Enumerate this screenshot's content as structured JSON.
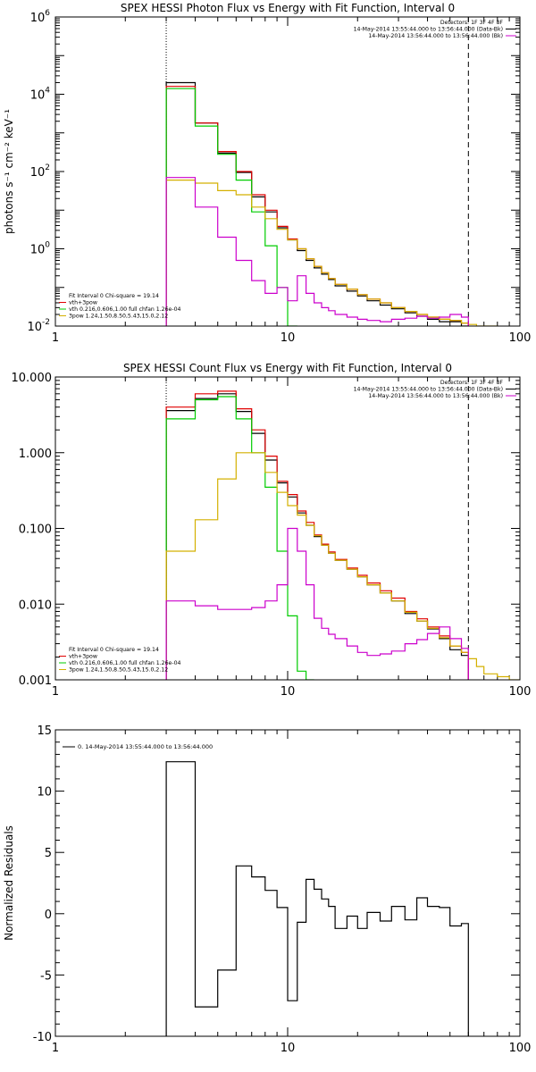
{
  "chart_data": [
    {
      "type": "line",
      "title": "SPEX HESSI Photon Flux vs Energy with Fit Function, Interval 0",
      "ylabel": "photons s⁻¹ cm⁻² keV⁻¹",
      "xscale": "log",
      "yscale": "log",
      "xlim": [
        1,
        100
      ],
      "ylim": [
        0.01,
        1000000
      ],
      "x_ticks": [
        {
          "value": 1,
          "label": "1"
        },
        {
          "value": 10,
          "label": "10"
        },
        {
          "value": 100,
          "label": "100"
        }
      ],
      "y_ticks": [
        {
          "value": 0.01,
          "base": "10",
          "exp": "-2"
        },
        {
          "value": 1,
          "base": "10",
          "exp": "0"
        },
        {
          "value": 100,
          "base": "10",
          "exp": "2"
        },
        {
          "value": 10000,
          "base": "10",
          "exp": "4"
        },
        {
          "value": 1000000,
          "base": "10",
          "exp": "6"
        }
      ],
      "vlines": [
        {
          "x": 3,
          "style": "dotted"
        },
        {
          "x": 60,
          "style": "dashed"
        }
      ],
      "legend_topright": [
        {
          "text": "Detectors: 1F 3F 4F 8F",
          "color": "#000000",
          "line": false
        },
        {
          "text": "14-May-2014 13:55:44.000 to 13:56:44.000 (Data-Bk)",
          "color": "#000000",
          "line": true
        },
        {
          "text": "14-May-2014 13:56:44.000 to 13:56:44.000 (Bk)",
          "color": "#cc00cc",
          "line": true
        }
      ],
      "legend_bottomleft": [
        {
          "text": "Fit Interval 0   Chi-square = 19.14",
          "color": "#000000",
          "line": false
        },
        {
          "text": "vth+3pow",
          "color": "#e00000",
          "line": true
        },
        {
          "text": "vth 0.216,0.606,1.00  full chfan 1.26e-04",
          "color": "#00cc00",
          "line": true
        },
        {
          "text": "3pow 1.24,1.50,8.50,5.43,15.0,2.12",
          "color": "#d4b000",
          "line": true
        }
      ],
      "edges": [
        3,
        4,
        5,
        6,
        7,
        8,
        9,
        10,
        11,
        12,
        13,
        14,
        15,
        16,
        18,
        20,
        22,
        25,
        28,
        32,
        36,
        40,
        45,
        50,
        56,
        60,
        65,
        70,
        80
      ],
      "series": [
        {
          "name": "Data-Bk",
          "color": "#000000",
          "start_edge": 0,
          "values": [
            20000,
            1800,
            300,
            95,
            22,
            9,
            3.5,
            1.7,
            0.9,
            0.5,
            0.32,
            0.22,
            0.16,
            0.11,
            0.08,
            0.06,
            0.045,
            0.035,
            0.028,
            0.022,
            0.018,
            0.015,
            0.013,
            0.013,
            0.01
          ]
        },
        {
          "name": "vth+3pow",
          "color": "#e00000",
          "start_edge": 0,
          "values": [
            16000,
            1800,
            330,
            100,
            25,
            10,
            3.8,
            1.8,
            1.0,
            0.55,
            0.35,
            0.24,
            0.17,
            0.12,
            0.09,
            0.065,
            0.05,
            0.04,
            0.03,
            0.024,
            0.02,
            0.017,
            0.015,
            0.014,
            0.012
          ]
        },
        {
          "name": "vth",
          "color": "#00cc00",
          "start_edge": 0,
          "values": [
            14000,
            1500,
            280,
            60,
            9,
            1.2,
            0.1,
            0.01
          ]
        },
        {
          "name": "3pow",
          "color": "#d4b000",
          "start_edge": 0,
          "values": [
            60,
            50,
            32,
            25,
            12,
            6,
            3.2,
            1.7,
            1.0,
            0.55,
            0.35,
            0.24,
            0.17,
            0.12,
            0.09,
            0.065,
            0.05,
            0.04,
            0.03,
            0.024,
            0.02,
            0.017,
            0.015,
            0.014,
            0.012,
            0.011,
            0.01,
            0.009
          ]
        },
        {
          "name": "Bk",
          "color": "#cc00cc",
          "start_edge": 0,
          "values": [
            70,
            12,
            2,
            0.5,
            0.15,
            0.07,
            0.1,
            0.045,
            0.2,
            0.07,
            0.04,
            0.03,
            0.025,
            0.02,
            0.017,
            0.015,
            0.014,
            0.013,
            0.015,
            0.016,
            0.018,
            0.016,
            0.017,
            0.02,
            0.017
          ]
        }
      ]
    },
    {
      "type": "line",
      "title": "SPEX HESSI Count Flux vs Energy with Fit Function, Interval 0",
      "ylabel": "",
      "xscale": "log",
      "yscale": "log",
      "xlim": [
        1,
        100
      ],
      "ylim": [
        0.001,
        10
      ],
      "x_ticks": [
        {
          "value": 1,
          "label": "1"
        },
        {
          "value": 10,
          "label": "10"
        },
        {
          "value": 100,
          "label": "100"
        }
      ],
      "y_ticks": [
        {
          "value": 0.001,
          "label": "0.001"
        },
        {
          "value": 0.01,
          "label": "0.010"
        },
        {
          "value": 0.1,
          "label": "0.100"
        },
        {
          "value": 1,
          "label": "1.000"
        },
        {
          "value": 10,
          "label": "10.000"
        }
      ],
      "vlines": [
        {
          "x": 3,
          "style": "dotted"
        },
        {
          "x": 60,
          "style": "dashed"
        }
      ],
      "legend_topright": [
        {
          "text": "Detectors: 1F 3F 4F 8F",
          "color": "#000000",
          "line": false
        },
        {
          "text": "14-May-2014 13:55:44.000 to 13:56:44.000 (Data-Bk)",
          "color": "#000000",
          "line": true
        },
        {
          "text": "14-May-2014 13:56:44.000 to 13:56:44.000 (Bk)",
          "color": "#cc00cc",
          "line": true
        }
      ],
      "legend_bottomleft": [
        {
          "text": "Fit Interval 0   Chi-square = 19.14",
          "color": "#000000",
          "line": false
        },
        {
          "text": "vth+3pow",
          "color": "#e00000",
          "line": true
        },
        {
          "text": "vth 0.216,0.606,1.00  full chfan 1.26e-04",
          "color": "#00cc00",
          "line": true
        },
        {
          "text": "3pow 1.24,1.50,8.50,5.43,15.0,2.12",
          "color": "#d4b000",
          "line": true
        }
      ],
      "edges": [
        3,
        4,
        5,
        6,
        7,
        8,
        9,
        10,
        11,
        12,
        13,
        14,
        15,
        16,
        18,
        20,
        22,
        25,
        28,
        32,
        36,
        40,
        45,
        50,
        56,
        60,
        65,
        70,
        80,
        90,
        100
      ],
      "series": [
        {
          "name": "Data-Bk",
          "color": "#000000",
          "start_edge": 0,
          "values": [
            3.6,
            5.2,
            6.0,
            3.5,
            1.8,
            0.8,
            0.4,
            0.26,
            0.16,
            0.11,
            0.078,
            0.06,
            0.047,
            0.038,
            0.029,
            0.023,
            0.018,
            0.014,
            0.011,
            0.0075,
            0.006,
            0.0047,
            0.0035,
            0.0025,
            0.0021
          ]
        },
        {
          "name": "vth+3pow",
          "color": "#e00000",
          "start_edge": 0,
          "values": [
            4.0,
            6.0,
            6.5,
            3.8,
            2.0,
            0.9,
            0.42,
            0.28,
            0.17,
            0.12,
            0.082,
            0.062,
            0.049,
            0.039,
            0.03,
            0.024,
            0.019,
            0.015,
            0.012,
            0.008,
            0.0064,
            0.005,
            0.0038,
            0.0028,
            0.0023
          ]
        },
        {
          "name": "vth",
          "color": "#00cc00",
          "start_edge": 0,
          "values": [
            2.8,
            5.0,
            5.5,
            2.8,
            1.0,
            0.35,
            0.05,
            0.007,
            0.0013,
            0.0009
          ]
        },
        {
          "name": "3pow",
          "color": "#d4b000",
          "start_edge": 0,
          "values": [
            0.05,
            0.13,
            0.45,
            1.0,
            1.0,
            0.55,
            0.3,
            0.2,
            0.15,
            0.11,
            0.08,
            0.06,
            0.047,
            0.038,
            0.029,
            0.023,
            0.018,
            0.014,
            0.011,
            0.0078,
            0.006,
            0.0048,
            0.0036,
            0.0028,
            0.0023,
            0.0019,
            0.0015,
            0.0012,
            0.0011,
            0.001
          ]
        },
        {
          "name": "Bk",
          "color": "#cc00cc",
          "start_edge": 0,
          "values": [
            0.011,
            0.0095,
            0.0085,
            0.0085,
            0.009,
            0.011,
            0.018,
            0.1,
            0.05,
            0.018,
            0.0065,
            0.0048,
            0.004,
            0.0035,
            0.0028,
            0.0023,
            0.0021,
            0.0022,
            0.0024,
            0.003,
            0.0034,
            0.0041,
            0.005,
            0.0035,
            0.0026
          ]
        }
      ]
    },
    {
      "type": "line",
      "title": "",
      "ylabel": "Normalized Residuals",
      "xscale": "log",
      "yscale": "linear",
      "xlim": [
        1,
        100
      ],
      "ylim": [
        -10,
        15
      ],
      "x_ticks": [
        {
          "value": 1,
          "label": "1"
        },
        {
          "value": 10,
          "label": "10"
        },
        {
          "value": 100,
          "label": "100"
        }
      ],
      "y_ticks": [
        {
          "value": -10,
          "label": "-10"
        },
        {
          "value": -5,
          "label": "-5"
        },
        {
          "value": 0,
          "label": "0"
        },
        {
          "value": 5,
          "label": "5"
        },
        {
          "value": 10,
          "label": "10"
        },
        {
          "value": 15,
          "label": "15"
        }
      ],
      "legend_topleft": [
        {
          "text": "0. 14-May-2014 13:55:44.000 to 13:56:44.000",
          "color": "#000000",
          "line": true
        }
      ],
      "edges": [
        3,
        4,
        5,
        6,
        7,
        8,
        9,
        10,
        11,
        12,
        13,
        14,
        15,
        16,
        18,
        20,
        22,
        25,
        28,
        32,
        36,
        40,
        45,
        50,
        56,
        60
      ],
      "series": [
        {
          "name": "0. 14-May-2014 13:55:44.000 to 13:56:44.000",
          "color": "#000000",
          "start_edge": 0,
          "values": [
            12.4,
            -7.6,
            -4.6,
            3.9,
            3.0,
            1.9,
            0.5,
            -7.1,
            -0.7,
            2.8,
            2.0,
            1.2,
            0.6,
            -1.2,
            -0.2,
            -1.2,
            0.1,
            -0.6,
            0.6,
            -0.5,
            1.3,
            0.6,
            0.5,
            -1.0,
            -0.8
          ]
        }
      ]
    }
  ]
}
